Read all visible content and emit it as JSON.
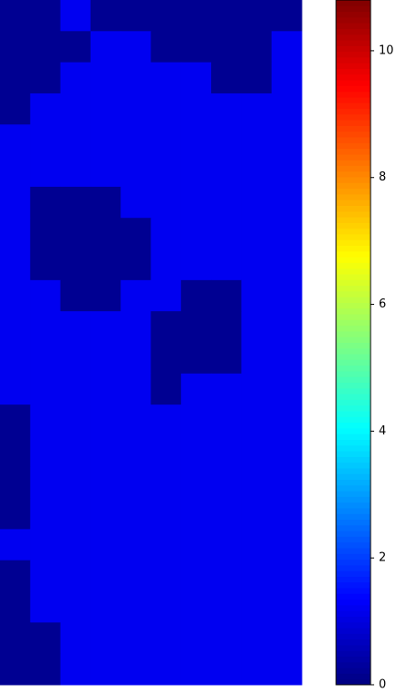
{
  "chart_data": {
    "type": "heatmap",
    "colormap": "jet",
    "clim": [
      0,
      10.8
    ],
    "cticks": [
      0,
      2,
      4,
      6,
      8,
      10
    ],
    "grid": [
      [
        0.2,
        0.2,
        1.2,
        0.2,
        0.2,
        0.2,
        0.2,
        0.2,
        0.2,
        0.2
      ],
      [
        0.2,
        0.2,
        0.2,
        1.2,
        1.2,
        0.2,
        0.2,
        0.2,
        0.2,
        1.2
      ],
      [
        0.2,
        0.2,
        1.2,
        1.2,
        1.2,
        1.2,
        1.2,
        0.2,
        0.2,
        1.2
      ],
      [
        0.2,
        1.2,
        1.2,
        1.2,
        1.2,
        1.2,
        1.2,
        1.2,
        1.2,
        1.2
      ],
      [
        1.2,
        1.2,
        1.2,
        1.2,
        1.2,
        1.2,
        1.2,
        1.2,
        1.2,
        1.2
      ],
      [
        1.2,
        1.2,
        1.2,
        1.2,
        1.2,
        1.2,
        1.2,
        1.2,
        1.2,
        1.2
      ],
      [
        1.2,
        0.2,
        0.2,
        0.2,
        1.2,
        1.2,
        1.2,
        1.2,
        1.2,
        1.2
      ],
      [
        1.2,
        0.2,
        0.2,
        0.2,
        0.2,
        1.2,
        1.2,
        1.2,
        1.2,
        1.2
      ],
      [
        1.2,
        0.2,
        0.2,
        0.2,
        0.2,
        1.2,
        1.2,
        1.2,
        1.2,
        1.2
      ],
      [
        1.2,
        1.2,
        0.2,
        0.2,
        1.2,
        1.2,
        0.2,
        0.2,
        1.2,
        1.2
      ],
      [
        1.2,
        1.2,
        1.2,
        1.2,
        1.2,
        0.2,
        0.2,
        0.2,
        1.2,
        1.2
      ],
      [
        1.2,
        1.2,
        1.2,
        1.2,
        1.2,
        0.2,
        0.2,
        0.2,
        1.2,
        1.2
      ],
      [
        1.2,
        1.2,
        1.2,
        1.2,
        1.2,
        0.2,
        1.2,
        1.2,
        1.2,
        1.2
      ],
      [
        0.2,
        1.2,
        1.2,
        1.2,
        1.2,
        1.2,
        1.2,
        1.2,
        1.2,
        1.2
      ],
      [
        0.2,
        1.2,
        1.2,
        1.2,
        1.2,
        1.2,
        1.2,
        1.2,
        1.2,
        1.2
      ],
      [
        0.2,
        1.2,
        1.2,
        1.2,
        1.2,
        1.2,
        1.2,
        1.2,
        1.2,
        1.2
      ],
      [
        0.2,
        1.2,
        1.2,
        1.2,
        1.2,
        1.2,
        1.2,
        1.2,
        1.2,
        1.2
      ],
      [
        1.2,
        1.2,
        1.2,
        1.2,
        1.2,
        1.2,
        1.2,
        1.2,
        1.2,
        1.2
      ],
      [
        0.2,
        1.2,
        1.2,
        1.2,
        1.2,
        1.2,
        1.2,
        1.2,
        1.2,
        1.2
      ],
      [
        0.2,
        1.2,
        1.2,
        1.2,
        1.2,
        1.2,
        1.2,
        1.2,
        1.2,
        1.2
      ],
      [
        0.2,
        0.2,
        1.2,
        1.2,
        1.2,
        1.2,
        1.2,
        1.2,
        1.2,
        1.2
      ],
      [
        0.2,
        0.2,
        1.2,
        1.2,
        1.2,
        1.2,
        1.2,
        1.2,
        1.2,
        1.2
      ]
    ]
  }
}
